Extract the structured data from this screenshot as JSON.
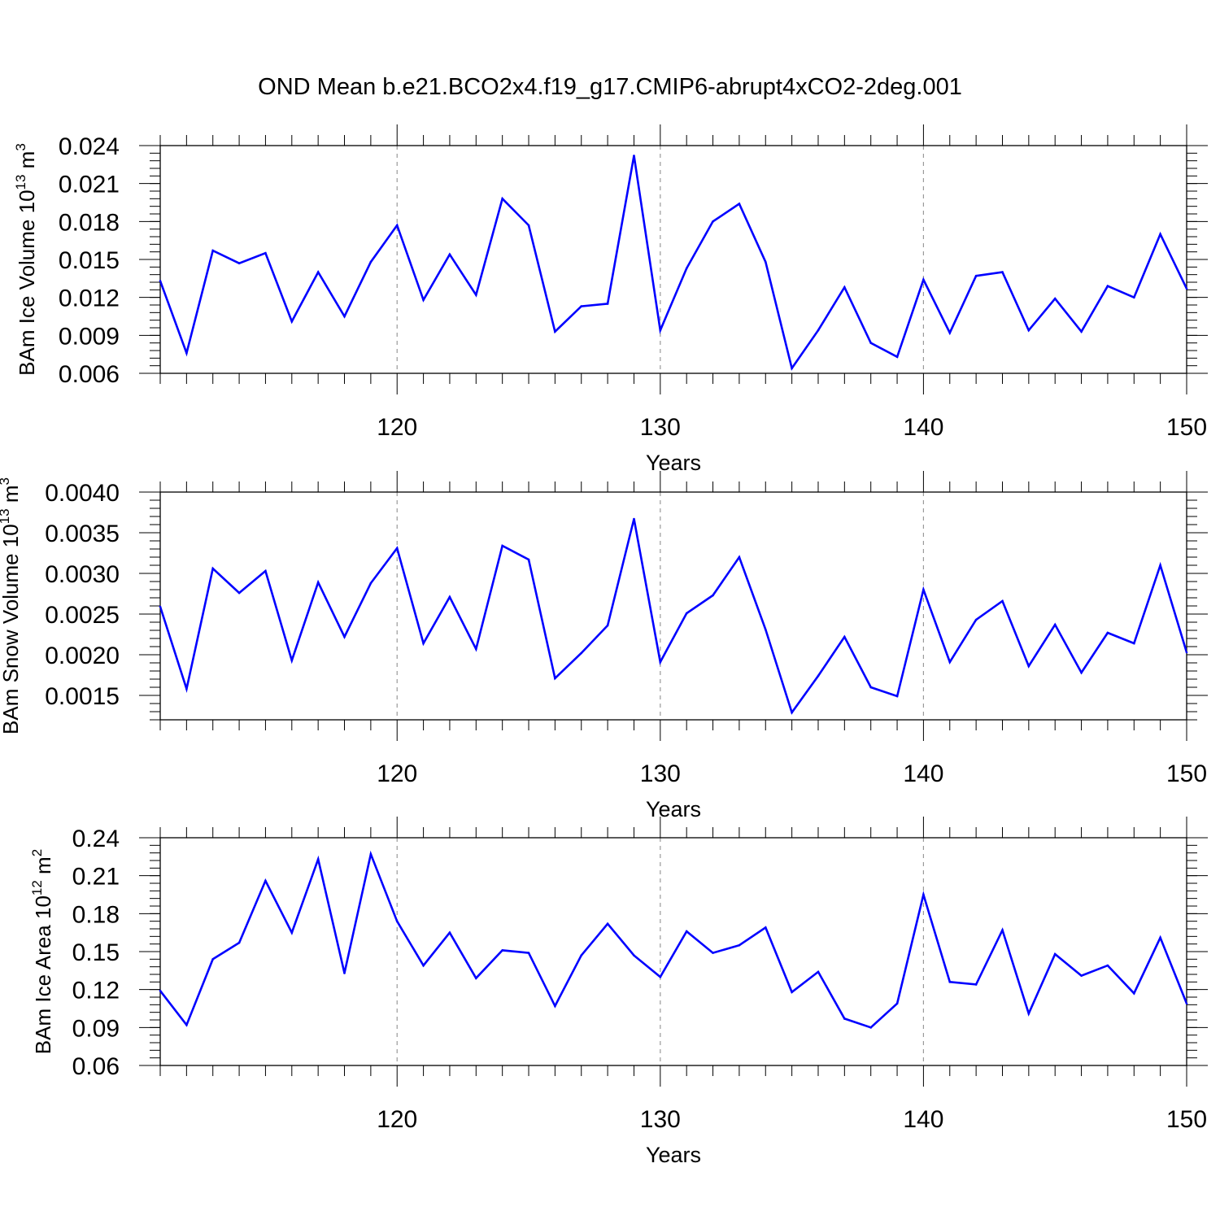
{
  "title": "OND Mean b.e21.BCO2x4.f19_g17.CMIP6-abrupt4xCO2-2deg.001",
  "series_color": "#0000ff",
  "chart_data": [
    {
      "type": "line",
      "ylabel": "BAm Ice Volume 10",
      "ylabel_exp": "13",
      "ylabel_unit": " m",
      "ylabel_unit_exp": "3",
      "xlabel": "Years",
      "xlim": [
        111,
        150
      ],
      "ylim": [
        0.006,
        0.024
      ],
      "xticks": [
        120,
        130,
        140,
        150
      ],
      "yticks": [
        0.006,
        0.009,
        0.012,
        0.015,
        0.018,
        0.021,
        0.024
      ],
      "ytick_labels": [
        "0.006",
        "0.009",
        "0.012",
        "0.015",
        "0.018",
        "0.021",
        "0.024"
      ],
      "y_minor_step": 0.0006,
      "grid": "dashed vertical at major x ticks",
      "x": [
        111,
        112,
        113,
        114,
        115,
        116,
        117,
        118,
        119,
        120,
        121,
        122,
        123,
        124,
        125,
        126,
        127,
        128,
        129,
        130,
        131,
        132,
        133,
        134,
        135,
        136,
        137,
        138,
        139,
        140,
        141,
        142,
        143,
        144,
        145,
        146,
        147,
        148,
        149,
        150
      ],
      "values": [
        0.0133,
        0.0076,
        0.0157,
        0.0147,
        0.0155,
        0.0101,
        0.014,
        0.0105,
        0.0148,
        0.0177,
        0.0118,
        0.0154,
        0.0122,
        0.0198,
        0.0177,
        0.0093,
        0.0113,
        0.0115,
        0.0232,
        0.0094,
        0.0143,
        0.018,
        0.0194,
        0.0148,
        0.0064,
        0.0094,
        0.0128,
        0.0084,
        0.0073,
        0.0134,
        0.0092,
        0.0137,
        0.014,
        0.0094,
        0.0119,
        0.0093,
        0.0129,
        0.012,
        0.017,
        0.0127
      ]
    },
    {
      "type": "line",
      "ylabel": "BAm Snow Volume 10",
      "ylabel_exp": "13",
      "ylabel_unit": " m",
      "ylabel_unit_exp": "3",
      "xlabel": "Years",
      "xlim": [
        111,
        150
      ],
      "ylim": [
        0.0012,
        0.004
      ],
      "xticks": [
        120,
        130,
        140,
        150
      ],
      "yticks": [
        0.0015,
        0.002,
        0.0025,
        0.003,
        0.0035,
        0.004
      ],
      "ytick_labels": [
        "0.0015",
        "0.0020",
        "0.0025",
        "0.0030",
        "0.0035",
        "0.0040"
      ],
      "y_minor_step": 0.0001,
      "grid": "dashed vertical at major x ticks",
      "x": [
        111,
        112,
        113,
        114,
        115,
        116,
        117,
        118,
        119,
        120,
        121,
        122,
        123,
        124,
        125,
        126,
        127,
        128,
        129,
        130,
        131,
        132,
        133,
        134,
        135,
        136,
        137,
        138,
        139,
        140,
        141,
        142,
        143,
        144,
        145,
        146,
        147,
        148,
        149,
        150
      ],
      "values": [
        0.00259,
        0.00158,
        0.00306,
        0.00276,
        0.00303,
        0.00193,
        0.00289,
        0.00222,
        0.00288,
        0.00331,
        0.00214,
        0.00271,
        0.00207,
        0.00334,
        0.00317,
        0.00171,
        0.00202,
        0.00236,
        0.00367,
        0.00191,
        0.00251,
        0.00273,
        0.0032,
        0.00231,
        0.00129,
        0.00174,
        0.00222,
        0.0016,
        0.00149,
        0.0028,
        0.00191,
        0.00243,
        0.00266,
        0.00186,
        0.00237,
        0.00178,
        0.00227,
        0.00214,
        0.0031,
        0.00203
      ]
    },
    {
      "type": "line",
      "ylabel": "BAm Ice Area 10",
      "ylabel_exp": "12",
      "ylabel_unit": " m",
      "ylabel_unit_exp": "2",
      "xlabel": "Years",
      "xlim": [
        111,
        150
      ],
      "ylim": [
        0.06,
        0.24
      ],
      "xticks": [
        120,
        130,
        140,
        150
      ],
      "yticks": [
        0.06,
        0.09,
        0.12,
        0.15,
        0.18,
        0.21,
        0.24
      ],
      "ytick_labels": [
        "0.06",
        "0.09",
        "0.12",
        "0.15",
        "0.18",
        "0.21",
        "0.24"
      ],
      "y_minor_step": 0.006,
      "grid": "dashed vertical at major x ticks",
      "x": [
        111,
        112,
        113,
        114,
        115,
        116,
        117,
        118,
        119,
        120,
        121,
        122,
        123,
        124,
        125,
        126,
        127,
        128,
        129,
        130,
        131,
        132,
        133,
        134,
        135,
        136,
        137,
        138,
        139,
        140,
        141,
        142,
        143,
        144,
        145,
        146,
        147,
        148,
        149,
        150
      ],
      "values": [
        0.119,
        0.092,
        0.144,
        0.157,
        0.206,
        0.165,
        0.223,
        0.133,
        0.227,
        0.174,
        0.139,
        0.165,
        0.129,
        0.151,
        0.149,
        0.107,
        0.147,
        0.172,
        0.147,
        0.13,
        0.166,
        0.149,
        0.155,
        0.169,
        0.118,
        0.134,
        0.097,
        0.09,
        0.109,
        0.195,
        0.126,
        0.124,
        0.167,
        0.101,
        0.148,
        0.131,
        0.139,
        0.117,
        0.161,
        0.109
      ]
    }
  ]
}
